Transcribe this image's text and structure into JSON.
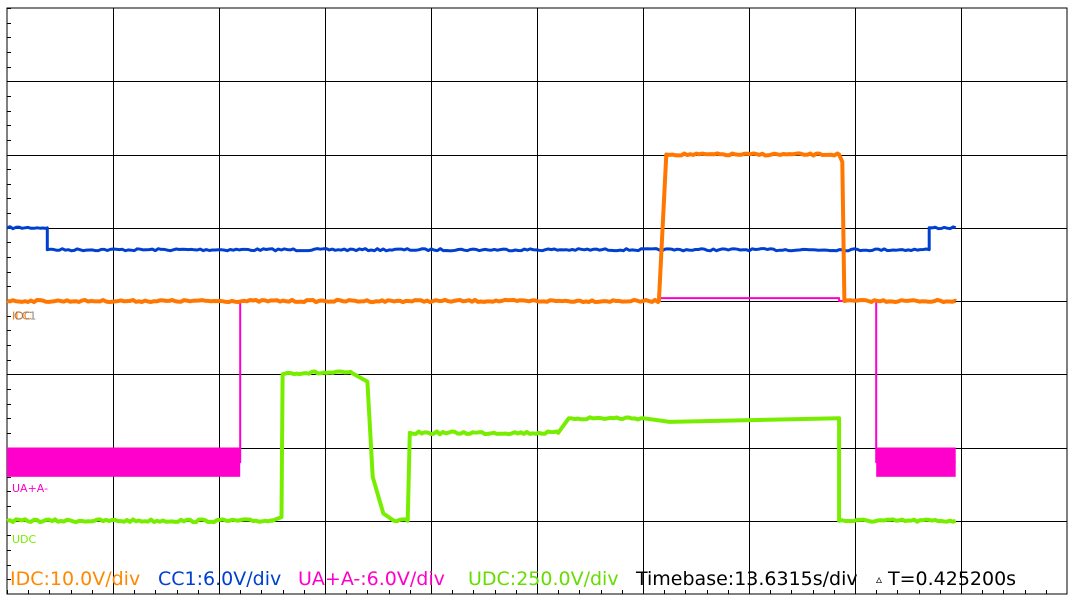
{
  "chart_data": {
    "type": "line",
    "title": "",
    "xlabel": "",
    "ylabel": "",
    "grid": true,
    "axes": {
      "x_divisions": 10,
      "y_divisions": 8,
      "minor_ticks_per_division": 5
    },
    "xlim": [
      0,
      10
    ],
    "ylim": [
      -4,
      4
    ],
    "series": [
      {
        "name": "CC1",
        "color": "#0040d0",
        "label_text": "",
        "width": 3,
        "noise": 0.015,
        "points": [
          [
            0,
            1.0
          ],
          [
            0.38,
            1.0
          ],
          [
            0.38,
            0.7
          ],
          [
            8.7,
            0.7
          ],
          [
            8.7,
            1.0
          ],
          [
            8.95,
            1.0
          ]
        ]
      },
      {
        "name": "UA+A-",
        "color": "#ff00cc",
        "label_text": "UA+A-",
        "width": 2,
        "noise": 0,
        "band": [
          [
            0,
            2.2,
            -2.0,
            -2.4
          ],
          [
            8.2,
            8.95,
            -2.0,
            -2.4
          ]
        ],
        "points": [
          [
            0,
            -2.2
          ],
          [
            2.2,
            -2.2
          ],
          [
            2.2,
            0.0
          ],
          [
            6.15,
            0.0
          ],
          [
            6.15,
            0.04
          ],
          [
            7.85,
            0.04
          ],
          [
            7.85,
            0.0
          ],
          [
            8.2,
            0.0
          ],
          [
            8.2,
            -2.2
          ],
          [
            8.95,
            -2.2
          ]
        ]
      },
      {
        "name": "UDC",
        "color": "#77ee00",
        "label_text": "UDC",
        "width": 4,
        "noise": 0.02,
        "points": [
          [
            0,
            -3.0
          ],
          [
            2.5,
            -3.0
          ],
          [
            2.59,
            -2.95
          ],
          [
            2.6,
            -1.0
          ],
          [
            2.65,
            -0.98
          ],
          [
            3.25,
            -0.98
          ],
          [
            3.4,
            -1.1
          ],
          [
            3.45,
            -2.4
          ],
          [
            3.55,
            -2.9
          ],
          [
            3.65,
            -3.0
          ],
          [
            3.78,
            -3.0
          ],
          [
            3.8,
            -1.8
          ],
          [
            5.2,
            -1.8
          ],
          [
            5.3,
            -1.6
          ],
          [
            6.0,
            -1.6
          ],
          [
            6.25,
            -1.65
          ],
          [
            7.85,
            -1.6
          ],
          [
            7.85,
            -3.0
          ],
          [
            8.95,
            -3.0
          ]
        ]
      },
      {
        "name": "IDC",
        "color": "#ff7700",
        "label_text": "IDC",
        "width": 4,
        "noise": 0.015,
        "points": [
          [
            0,
            0.0
          ],
          [
            6.15,
            0.0
          ],
          [
            6.22,
            2.0
          ],
          [
            7.85,
            2.0
          ],
          [
            7.88,
            1.9
          ],
          [
            7.9,
            0.0
          ],
          [
            8.95,
            0.0
          ]
        ]
      }
    ],
    "label_overlay_text": "CC1",
    "legend": [
      {
        "text": "IDC:10.0V/div",
        "color": "#ff8800"
      },
      {
        "text": "CC1:6.0V/div",
        "color": "#0040d0"
      },
      {
        "text": "UA+A-:6.0V/div",
        "color": "#ff00cc"
      },
      {
        "text": "UDC:250.0V/div",
        "color": "#66dd00"
      }
    ],
    "timebase": "Timebase:13.6315s/div",
    "delta_t": "T=0.425200s",
    "delta_symbol": "▵"
  }
}
